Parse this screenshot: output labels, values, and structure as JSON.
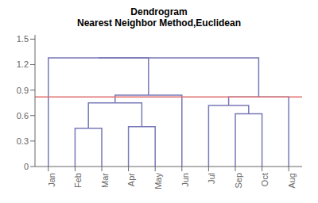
{
  "chart_data": {
    "type": "dendrogram",
    "title": "Dendrogram",
    "subtitle": "Nearest Neighbor Method,Euclidean",
    "categories": [
      "Jan",
      "Feb",
      "Mar",
      "Apr",
      "May",
      "Jun",
      "Jul",
      "Sep",
      "Oct",
      "Aug"
    ],
    "merges": [
      {
        "left": 1,
        "right": 2,
        "height": 0.45
      },
      {
        "left": 3,
        "right": 4,
        "height": 0.47
      },
      {
        "left": 7,
        "right": 8,
        "height": 0.62
      },
      {
        "left": 10,
        "right": 11,
        "height": 0.75
      },
      {
        "left": 6,
        "right": 12,
        "height": 0.72
      },
      {
        "left": 5,
        "right": 13,
        "height": 0.84
      },
      {
        "left": 9,
        "right": 14,
        "height": 0.82
      },
      {
        "left": 0,
        "right": 15,
        "height": 1.28
      },
      {
        "left": 16,
        "right": 17,
        "height": 1.28
      }
    ],
    "color": "#7878b8",
    "threshold": {
      "value": 0.82,
      "color": "#e07070"
    },
    "ylim": [
      0,
      1.55
    ],
    "yticks": [
      0,
      0.3,
      0.6,
      0.9,
      1.2,
      1.5
    ],
    "grid": false
  }
}
